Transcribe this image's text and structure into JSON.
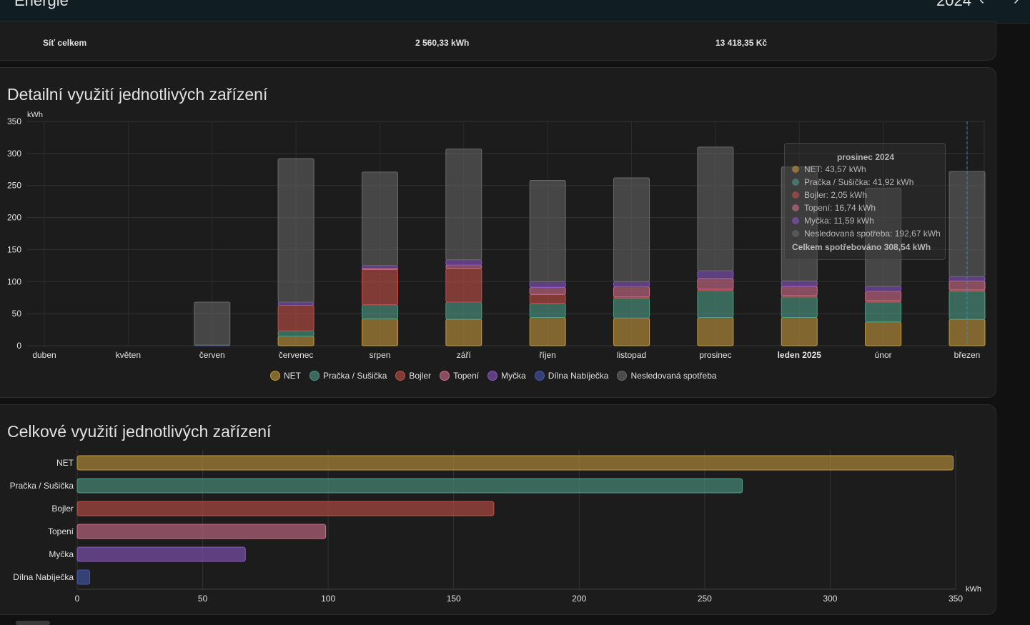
{
  "header": {
    "title": "Energie",
    "year": "2024",
    "prev_icon": "chevron-left-icon",
    "next_icon": "chevron-right-icon"
  },
  "grid_row": {
    "label": "Síť celkem",
    "energy": "2 560,33 kWh",
    "cost": "13 418,35 Kč"
  },
  "charts": {
    "detail_title": "Detailní využití jednotlivých zařízení",
    "total_title": "Celkové využití jednotlivých zařízení"
  },
  "tooltip": {
    "title": "prosinec 2024",
    "rows": [
      {
        "text": "NET: 43,57 kWh",
        "color": "#c49a3c"
      },
      {
        "text": "Pračka / Sušička: 41,92 kWh",
        "color": "#4e9c86"
      },
      {
        "text": "Bojler: 2,05 kWh",
        "color": "#c4504a"
      },
      {
        "text": "Topení: 16,74 kWh",
        "color": "#d0708e"
      },
      {
        "text": "Myčka: 11,59 kWh",
        "color": "#8a58c4"
      },
      {
        "text": "Nesledovaná spotřeba: 192,67 kWh",
        "color": "#6a6a6a"
      }
    ],
    "total": "Celkem spotřebováno 308,54 kWh"
  },
  "chart_data": [
    {
      "type": "bar",
      "stacked": true,
      "ylabel": "kWh",
      "ylim": [
        0,
        350
      ],
      "yticks": [
        0,
        50,
        100,
        150,
        200,
        250,
        300,
        350
      ],
      "grid": true,
      "legend_position": "bottom-center",
      "categories": [
        "duben",
        "květen",
        "červen",
        "červenec",
        "srpen",
        "září",
        "říjen",
        "listopad",
        "prosinec",
        "leden 2025",
        "únor",
        "březen"
      ],
      "series": [
        {
          "name": "NET",
          "color": "#c49a3c",
          "values": [
            0,
            0,
            0,
            15,
            42,
            41,
            44,
            43,
            44,
            44,
            37,
            41
          ]
        },
        {
          "name": "Pračka / Sušička",
          "color": "#4e9c86",
          "values": [
            0,
            0,
            0,
            8,
            22,
            27,
            22,
            31,
            42,
            32,
            31,
            44
          ]
        },
        {
          "name": "Bojler",
          "color": "#c4504a",
          "values": [
            0,
            0,
            0,
            40,
            55,
            53,
            14,
            2,
            2,
            2,
            2,
            2
          ]
        },
        {
          "name": "Topení",
          "color": "#d0708e",
          "values": [
            0,
            0,
            0,
            0,
            2,
            5,
            11,
            16,
            17,
            15,
            15,
            14
          ]
        },
        {
          "name": "Myčka",
          "color": "#8a58c4",
          "values": [
            0,
            0,
            0,
            5,
            4,
            8,
            9,
            8,
            12,
            8,
            8,
            7
          ]
        },
        {
          "name": "Dílna Nabíječka",
          "color": "#4658b0",
          "values": [
            0,
            0,
            1,
            0,
            0,
            0,
            0,
            0,
            0,
            0,
            0,
            0
          ]
        },
        {
          "name": "Nesledovaná spotřeba",
          "color": "#6a6a6a",
          "values": [
            0,
            0,
            67,
            224,
            146,
            173,
            158,
            162,
            193,
            178,
            153,
            164
          ]
        }
      ]
    },
    {
      "type": "bar",
      "orientation": "horizontal",
      "xlabel": "kWh",
      "xlim": [
        0,
        350
      ],
      "xticks": [
        0,
        50,
        100,
        150,
        200,
        250,
        300,
        350
      ],
      "grid": true,
      "categories": [
        "NET",
        "Pračka / Sušička",
        "Bojler",
        "Topení",
        "Myčka",
        "Dílna Nabíječka"
      ],
      "values": [
        349,
        265,
        166,
        99,
        67,
        5
      ],
      "colors": [
        "#c49a3c",
        "#4e9c86",
        "#c4504a",
        "#d0708e",
        "#8a58c4",
        "#4658b0"
      ]
    }
  ]
}
